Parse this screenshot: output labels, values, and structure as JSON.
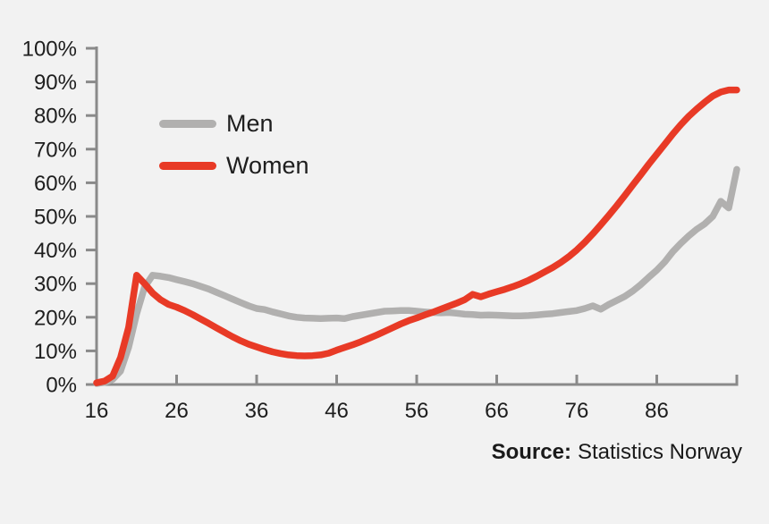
{
  "chart_data": {
    "type": "line",
    "title": "",
    "xlabel": "",
    "ylabel": "",
    "xlim": [
      16,
      96
    ],
    "ylim": [
      0,
      100
    ],
    "grid": false,
    "legend_position": "upper-left",
    "x_ticks": [
      16,
      26,
      36,
      46,
      56,
      66,
      76,
      86
    ],
    "y_ticks": [
      "0%",
      "10%",
      "20%",
      "30%",
      "40%",
      "50%",
      "60%",
      "70%",
      "80%",
      "90%",
      "100%"
    ],
    "x": [
      16,
      17,
      18,
      19,
      20,
      21,
      22,
      23,
      24,
      25,
      26,
      27,
      28,
      29,
      30,
      31,
      32,
      33,
      34,
      35,
      36,
      37,
      38,
      39,
      40,
      41,
      42,
      43,
      44,
      45,
      46,
      47,
      48,
      49,
      50,
      51,
      52,
      53,
      54,
      55,
      56,
      57,
      58,
      59,
      60,
      61,
      62,
      63,
      64,
      65,
      66,
      67,
      68,
      69,
      70,
      71,
      72,
      73,
      74,
      75,
      76,
      77,
      78,
      79,
      80,
      81,
      82,
      83,
      84,
      85,
      86,
      87,
      88,
      89,
      90,
      91,
      92,
      93,
      94,
      95,
      96
    ],
    "series": [
      {
        "name": "Men",
        "color": "#b1b0af",
        "values": [
          0.3,
          0.6,
          1.5,
          4,
          11,
          21,
          29,
          32.5,
          32.2,
          31.8,
          31.2,
          30.6,
          30,
          29.2,
          28.4,
          27.4,
          26.4,
          25.4,
          24.4,
          23.4,
          22.6,
          22.3,
          21.6,
          21,
          20.4,
          20,
          19.8,
          19.7,
          19.6,
          19.7,
          19.8,
          19.6,
          20.2,
          20.6,
          21,
          21.4,
          21.8,
          21.9,
          22,
          22,
          21.8,
          21.6,
          21.4,
          21.3,
          21.4,
          21.2,
          20.9,
          20.8,
          20.6,
          20.7,
          20.6,
          20.5,
          20.4,
          20.4,
          20.5,
          20.7,
          20.9,
          21.1,
          21.4,
          21.7,
          22,
          22.6,
          23.4,
          22.4,
          23.8,
          25,
          26.2,
          27.8,
          29.7,
          31.9,
          34,
          36.5,
          39.5,
          42,
          44.2,
          46.2,
          47.8,
          50,
          54.5,
          52.5,
          64
        ]
      },
      {
        "name": "Women",
        "color": "#e83a26",
        "values": [
          0.5,
          1,
          2.5,
          8,
          17,
          32.5,
          30,
          27.2,
          25.2,
          23.8,
          23,
          22,
          20.8,
          19.5,
          18.2,
          16.8,
          15.5,
          14.2,
          13,
          12,
          11.2,
          10.4,
          9.7,
          9.2,
          8.8,
          8.6,
          8.5,
          8.6,
          8.8,
          9.3,
          10.2,
          11,
          11.8,
          12.7,
          13.7,
          14.7,
          15.8,
          16.9,
          18,
          19,
          19.8,
          20.7,
          21.5,
          22.4,
          23.3,
          24.2,
          25.2,
          26.8,
          26.1,
          26.9,
          27.6,
          28.3,
          29.1,
          30,
          31,
          32.2,
          33.5,
          34.8,
          36.3,
          38,
          40,
          42.3,
          44.8,
          47.5,
          50.3,
          53.2,
          56.2,
          59.3,
          62.4,
          65.5,
          68.5,
          71.5,
          74.5,
          77.3,
          79.8,
          82,
          84,
          85.8,
          87,
          87.6,
          87.6
        ]
      }
    ]
  },
  "source": {
    "label": "Source:",
    "text": "Statistics Norway"
  },
  "colors": {
    "background": "#f2f2f2",
    "axis": "#8a8a8a",
    "text": "#1e1e1e",
    "men_line": "#b1b0af",
    "women_line": "#e83a26"
  }
}
